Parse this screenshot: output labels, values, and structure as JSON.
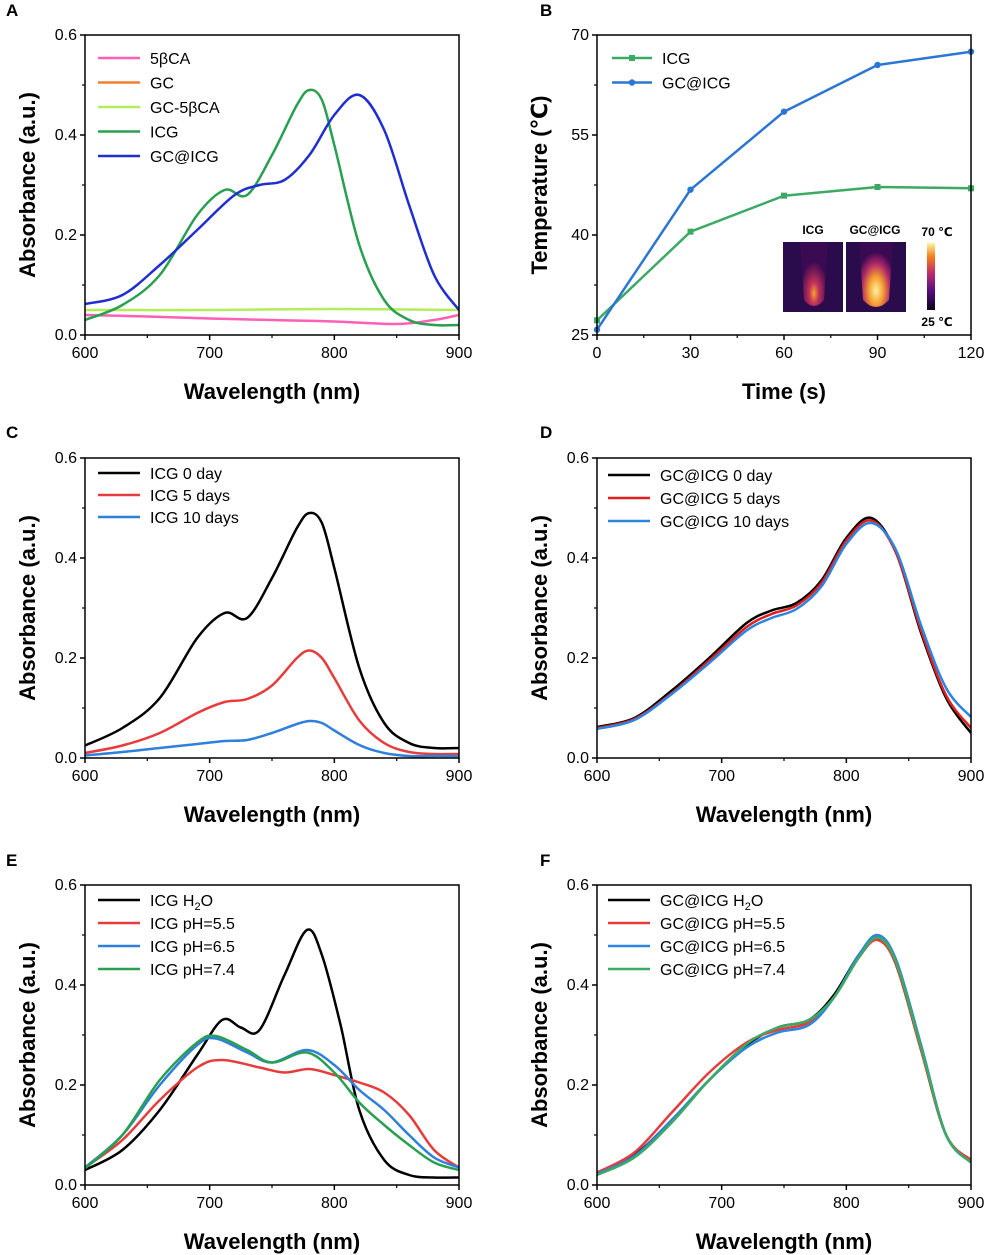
{
  "chart_data": [
    {
      "panel": "A",
      "type": "line",
      "xlabel": "Wavelength (nm)",
      "ylabel": "Absorbance (a.u.)",
      "xlim": [
        600,
        900
      ],
      "ylim": [
        0,
        0.6
      ],
      "xticks": [
        600,
        700,
        800,
        900
      ],
      "yticks": [
        0.0,
        0.2,
        0.4,
        0.6
      ],
      "legend_position": "top-left",
      "series": [
        {
          "name": "5βCA",
          "color": "#ff5fb4",
          "x": [
            600,
            650,
            700,
            750,
            800,
            850,
            880,
            900
          ],
          "values": [
            0.04,
            0.037,
            0.033,
            0.03,
            0.027,
            0.022,
            0.03,
            0.04
          ]
        },
        {
          "name": "GC",
          "color": "#f08030",
          "x": [
            600,
            700,
            800,
            900
          ],
          "values": [
            -0.002,
            -0.002,
            -0.002,
            -0.002
          ]
        },
        {
          "name": "GC-5βCA",
          "color": "#b4ec5a",
          "x": [
            600,
            700,
            800,
            900
          ],
          "values": [
            0.05,
            0.05,
            0.052,
            0.05
          ]
        },
        {
          "name": "ICG",
          "color": "#28a050",
          "x": [
            600,
            630,
            660,
            690,
            712,
            730,
            750,
            770,
            780,
            790,
            800,
            820,
            840,
            860,
            880,
            900
          ],
          "values": [
            0.03,
            0.06,
            0.12,
            0.24,
            0.29,
            0.28,
            0.36,
            0.46,
            0.49,
            0.47,
            0.38,
            0.18,
            0.07,
            0.03,
            0.02,
            0.02
          ]
        },
        {
          "name": "GC@ICG",
          "color": "#1f2ed0",
          "x": [
            600,
            630,
            660,
            690,
            720,
            740,
            760,
            780,
            800,
            820,
            840,
            860,
            880,
            900
          ],
          "values": [
            0.062,
            0.08,
            0.14,
            0.21,
            0.28,
            0.3,
            0.31,
            0.36,
            0.44,
            0.48,
            0.41,
            0.26,
            0.12,
            0.05
          ]
        }
      ]
    },
    {
      "panel": "B",
      "type": "line",
      "xlabel": "Time (s)",
      "ylabel": "Temperature (℃)",
      "xlim": [
        0,
        120
      ],
      "ylim": [
        25,
        70
      ],
      "xticks": [
        0,
        30,
        60,
        90,
        120
      ],
      "yticks": [
        25,
        40,
        55,
        70
      ],
      "legend_position": "top-left",
      "series": [
        {
          "name": "ICG",
          "color": "#3caa64",
          "x": [
            0,
            30,
            60,
            90,
            120
          ],
          "values": [
            27.2,
            40.5,
            45.9,
            47.2,
            47.0
          ]
        },
        {
          "name": "GC@ICG",
          "color": "#2a76d2",
          "x": [
            0,
            30,
            60,
            90,
            120
          ],
          "values": [
            25.8,
            46.8,
            58.5,
            65.5,
            67.5
          ]
        }
      ],
      "inset": {
        "labels": [
          "ICG",
          "GC@ICG"
        ],
        "scale_max": "70 ℃",
        "scale_min": "25 ℃"
      }
    },
    {
      "panel": "C",
      "type": "line",
      "xlabel": "Wavelength (nm)",
      "ylabel": "Absorbance (a.u.)",
      "xlim": [
        600,
        900
      ],
      "ylim": [
        0,
        0.6
      ],
      "xticks": [
        600,
        700,
        800,
        900
      ],
      "yticks": [
        0.0,
        0.2,
        0.4,
        0.6
      ],
      "legend_position": "top-left",
      "series": [
        {
          "name": "ICG 0 day",
          "color": "#000000",
          "x": [
            600,
            630,
            660,
            690,
            712,
            730,
            750,
            770,
            780,
            790,
            800,
            820,
            840,
            860,
            880,
            900
          ],
          "values": [
            0.025,
            0.06,
            0.12,
            0.24,
            0.29,
            0.28,
            0.36,
            0.46,
            0.49,
            0.47,
            0.38,
            0.18,
            0.07,
            0.03,
            0.02,
            0.02
          ]
        },
        {
          "name": "ICG 5 days",
          "color": "#e83c3c",
          "x": [
            600,
            630,
            660,
            690,
            712,
            730,
            750,
            770,
            780,
            790,
            800,
            820,
            840,
            860,
            880,
            900
          ],
          "values": [
            0.01,
            0.025,
            0.05,
            0.09,
            0.112,
            0.118,
            0.145,
            0.2,
            0.215,
            0.2,
            0.16,
            0.075,
            0.03,
            0.012,
            0.008,
            0.008
          ]
        },
        {
          "name": "ICG 10 days",
          "color": "#2f7fdc",
          "x": [
            600,
            630,
            660,
            690,
            712,
            730,
            750,
            770,
            780,
            790,
            800,
            820,
            840,
            860,
            880,
            900
          ],
          "values": [
            0.005,
            0.012,
            0.02,
            0.028,
            0.034,
            0.036,
            0.05,
            0.068,
            0.074,
            0.07,
            0.055,
            0.026,
            0.01,
            0.004,
            0.004,
            0.004
          ]
        }
      ]
    },
    {
      "panel": "D",
      "type": "line",
      "xlabel": "Wavelength (nm)",
      "ylabel": "Absorbance (a.u.)",
      "xlim": [
        600,
        900
      ],
      "ylim": [
        0,
        0.6
      ],
      "xticks": [
        600,
        700,
        800,
        900
      ],
      "yticks": [
        0.0,
        0.2,
        0.4,
        0.6
      ],
      "legend_position": "top-left",
      "series": [
        {
          "name": "GC@ICG 0 day",
          "color": "#000000",
          "x": [
            600,
            630,
            660,
            690,
            720,
            740,
            760,
            780,
            800,
            820,
            840,
            860,
            880,
            900
          ],
          "values": [
            0.062,
            0.08,
            0.135,
            0.2,
            0.27,
            0.295,
            0.31,
            0.355,
            0.44,
            0.48,
            0.41,
            0.25,
            0.12,
            0.05
          ]
        },
        {
          "name": "GC@ICG 5 days",
          "color": "#e11f1f",
          "x": [
            600,
            630,
            660,
            690,
            720,
            740,
            760,
            780,
            800,
            820,
            840,
            860,
            880,
            900
          ],
          "values": [
            0.06,
            0.078,
            0.13,
            0.195,
            0.262,
            0.288,
            0.305,
            0.35,
            0.435,
            0.475,
            0.41,
            0.255,
            0.125,
            0.06
          ]
        },
        {
          "name": "GC@ICG 10 days",
          "color": "#2a86e0",
          "x": [
            600,
            630,
            660,
            690,
            720,
            740,
            760,
            780,
            800,
            820,
            840,
            860,
            880,
            900
          ],
          "values": [
            0.058,
            0.076,
            0.128,
            0.19,
            0.255,
            0.28,
            0.298,
            0.343,
            0.428,
            0.47,
            0.415,
            0.265,
            0.14,
            0.082
          ]
        }
      ]
    },
    {
      "panel": "E",
      "type": "line",
      "xlabel": "Wavelength (nm)",
      "ylabel": "Absorbance (a.u.)",
      "xlim": [
        600,
        900
      ],
      "ylim": [
        0,
        0.6
      ],
      "xticks": [
        600,
        700,
        800,
        900
      ],
      "yticks": [
        0.0,
        0.2,
        0.4,
        0.6
      ],
      "legend_position": "top-left",
      "series": [
        {
          "name": "ICG H2O",
          "label_main": "ICG H",
          "label_sub": "2",
          "label_end": "O",
          "color": "#000000",
          "x": [
            600,
            630,
            660,
            690,
            710,
            725,
            740,
            760,
            778,
            790,
            805,
            820,
            840,
            860,
            880,
            900
          ],
          "values": [
            0.03,
            0.07,
            0.15,
            0.26,
            0.33,
            0.315,
            0.31,
            0.42,
            0.51,
            0.46,
            0.32,
            0.15,
            0.05,
            0.02,
            0.015,
            0.015
          ]
        },
        {
          "name": "ICG pH=5.5",
          "color": "#e83c3c",
          "x": [
            600,
            630,
            660,
            690,
            710,
            740,
            760,
            780,
            800,
            820,
            840,
            860,
            880,
            900
          ],
          "values": [
            0.035,
            0.09,
            0.17,
            0.235,
            0.25,
            0.235,
            0.225,
            0.232,
            0.22,
            0.205,
            0.185,
            0.14,
            0.07,
            0.035
          ]
        },
        {
          "name": "ICG pH=6.5",
          "color": "#2f7fdc",
          "x": [
            600,
            630,
            660,
            690,
            705,
            730,
            750,
            778,
            800,
            820,
            840,
            860,
            880,
            900
          ],
          "values": [
            0.035,
            0.1,
            0.2,
            0.28,
            0.293,
            0.265,
            0.245,
            0.27,
            0.24,
            0.19,
            0.15,
            0.1,
            0.055,
            0.035
          ]
        },
        {
          "name": "ICG pH=7.4",
          "color": "#28a050",
          "x": [
            600,
            630,
            660,
            690,
            705,
            730,
            750,
            778,
            800,
            820,
            840,
            860,
            880,
            900
          ],
          "values": [
            0.033,
            0.1,
            0.21,
            0.285,
            0.298,
            0.27,
            0.245,
            0.265,
            0.225,
            0.165,
            0.12,
            0.08,
            0.045,
            0.03
          ]
        }
      ]
    },
    {
      "panel": "F",
      "type": "line",
      "xlabel": "Wavelength (nm)",
      "ylabel": "Absorbance (a.u.)",
      "xlim": [
        600,
        900
      ],
      "ylim": [
        0,
        0.6
      ],
      "xticks": [
        600,
        700,
        800,
        900
      ],
      "yticks": [
        0.0,
        0.2,
        0.4,
        0.6
      ],
      "legend_position": "top-left",
      "series": [
        {
          "name": "GC@ICG H2O",
          "label_main": "GC@ICG H",
          "label_sub": "2",
          "label_end": "O",
          "color": "#000000",
          "x": [
            600,
            630,
            660,
            690,
            720,
            745,
            770,
            790,
            810,
            825,
            840,
            860,
            880,
            900
          ],
          "values": [
            0.025,
            0.06,
            0.13,
            0.21,
            0.28,
            0.315,
            0.33,
            0.38,
            0.46,
            0.495,
            0.44,
            0.27,
            0.1,
            0.05
          ]
        },
        {
          "name": "GC@ICG pH=5.5",
          "color": "#e83c3c",
          "x": [
            600,
            630,
            660,
            690,
            720,
            745,
            770,
            790,
            810,
            825,
            840,
            860,
            880,
            900
          ],
          "values": [
            0.025,
            0.065,
            0.145,
            0.225,
            0.285,
            0.31,
            0.325,
            0.375,
            0.455,
            0.49,
            0.44,
            0.27,
            0.1,
            0.05
          ]
        },
        {
          "name": "GC@ICG pH=6.5",
          "color": "#2a86e0",
          "x": [
            600,
            630,
            660,
            690,
            720,
            745,
            770,
            790,
            810,
            825,
            840,
            860,
            880,
            900
          ],
          "values": [
            0.022,
            0.058,
            0.13,
            0.21,
            0.275,
            0.305,
            0.32,
            0.375,
            0.46,
            0.5,
            0.45,
            0.28,
            0.1,
            0.045
          ]
        },
        {
          "name": "GC@ICG pH=7.4",
          "color": "#3caa64",
          "x": [
            600,
            630,
            660,
            690,
            720,
            745,
            770,
            790,
            810,
            825,
            840,
            860,
            880,
            900
          ],
          "values": [
            0.02,
            0.055,
            0.125,
            0.21,
            0.282,
            0.315,
            0.33,
            0.375,
            0.455,
            0.495,
            0.445,
            0.275,
            0.1,
            0.045
          ]
        }
      ]
    }
  ]
}
